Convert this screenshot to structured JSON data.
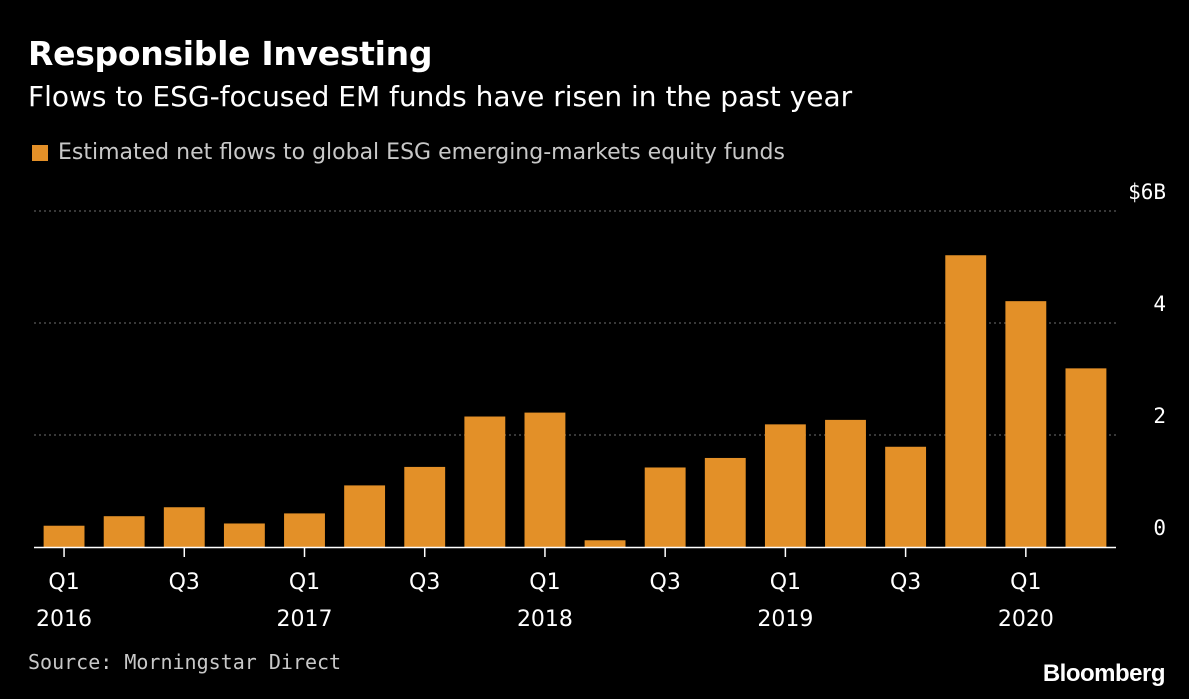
{
  "title": "Responsible Investing",
  "subtitle": "Flows to ESG-focused EM funds have risen in the past year",
  "source": "Source: Morningstar Direct",
  "brand": "Bloomberg",
  "colors": {
    "bar": "#e39028",
    "grid": "#5a5a5a",
    "background": "#000000"
  },
  "chart_data": {
    "type": "bar",
    "categories": [
      "Q1 2016",
      "Q2 2016",
      "Q3 2016",
      "Q4 2016",
      "Q1 2017",
      "Q2 2017",
      "Q3 2017",
      "Q4 2017",
      "Q1 2018",
      "Q2 2018",
      "Q3 2018",
      "Q4 2018",
      "Q1 2019",
      "Q2 2019",
      "Q3 2019",
      "Q4 2019",
      "Q1 2020",
      "Q2 2020"
    ],
    "x_tick_labels": [
      {
        "index": 0,
        "quarter": "Q1",
        "year": "2016"
      },
      {
        "index": 2,
        "quarter": "Q3",
        "year": ""
      },
      {
        "index": 4,
        "quarter": "Q1",
        "year": "2017"
      },
      {
        "index": 6,
        "quarter": "Q3",
        "year": ""
      },
      {
        "index": 8,
        "quarter": "Q1",
        "year": "2018"
      },
      {
        "index": 10,
        "quarter": "Q3",
        "year": ""
      },
      {
        "index": 12,
        "quarter": "Q1",
        "year": "2019"
      },
      {
        "index": 14,
        "quarter": "Q3",
        "year": ""
      },
      {
        "index": 16,
        "quarter": "Q1",
        "year": "2020"
      }
    ],
    "series": [
      {
        "name": "Estimated net flows to global ESG emerging-markets equity funds",
        "values": [
          0.38,
          0.55,
          0.71,
          0.42,
          0.6,
          1.1,
          1.43,
          2.33,
          2.4,
          0.12,
          1.42,
          1.59,
          2.19,
          2.27,
          1.79,
          5.21,
          4.39,
          3.19
        ]
      }
    ],
    "y_ticks": [
      0,
      2,
      4,
      6
    ],
    "y_tick_labels": [
      "0",
      "2",
      "4",
      "$6B"
    ],
    "ylim": [
      0,
      6
    ],
    "xlabel": "",
    "ylabel": "",
    "grid": true,
    "legend_position": "top-left"
  }
}
